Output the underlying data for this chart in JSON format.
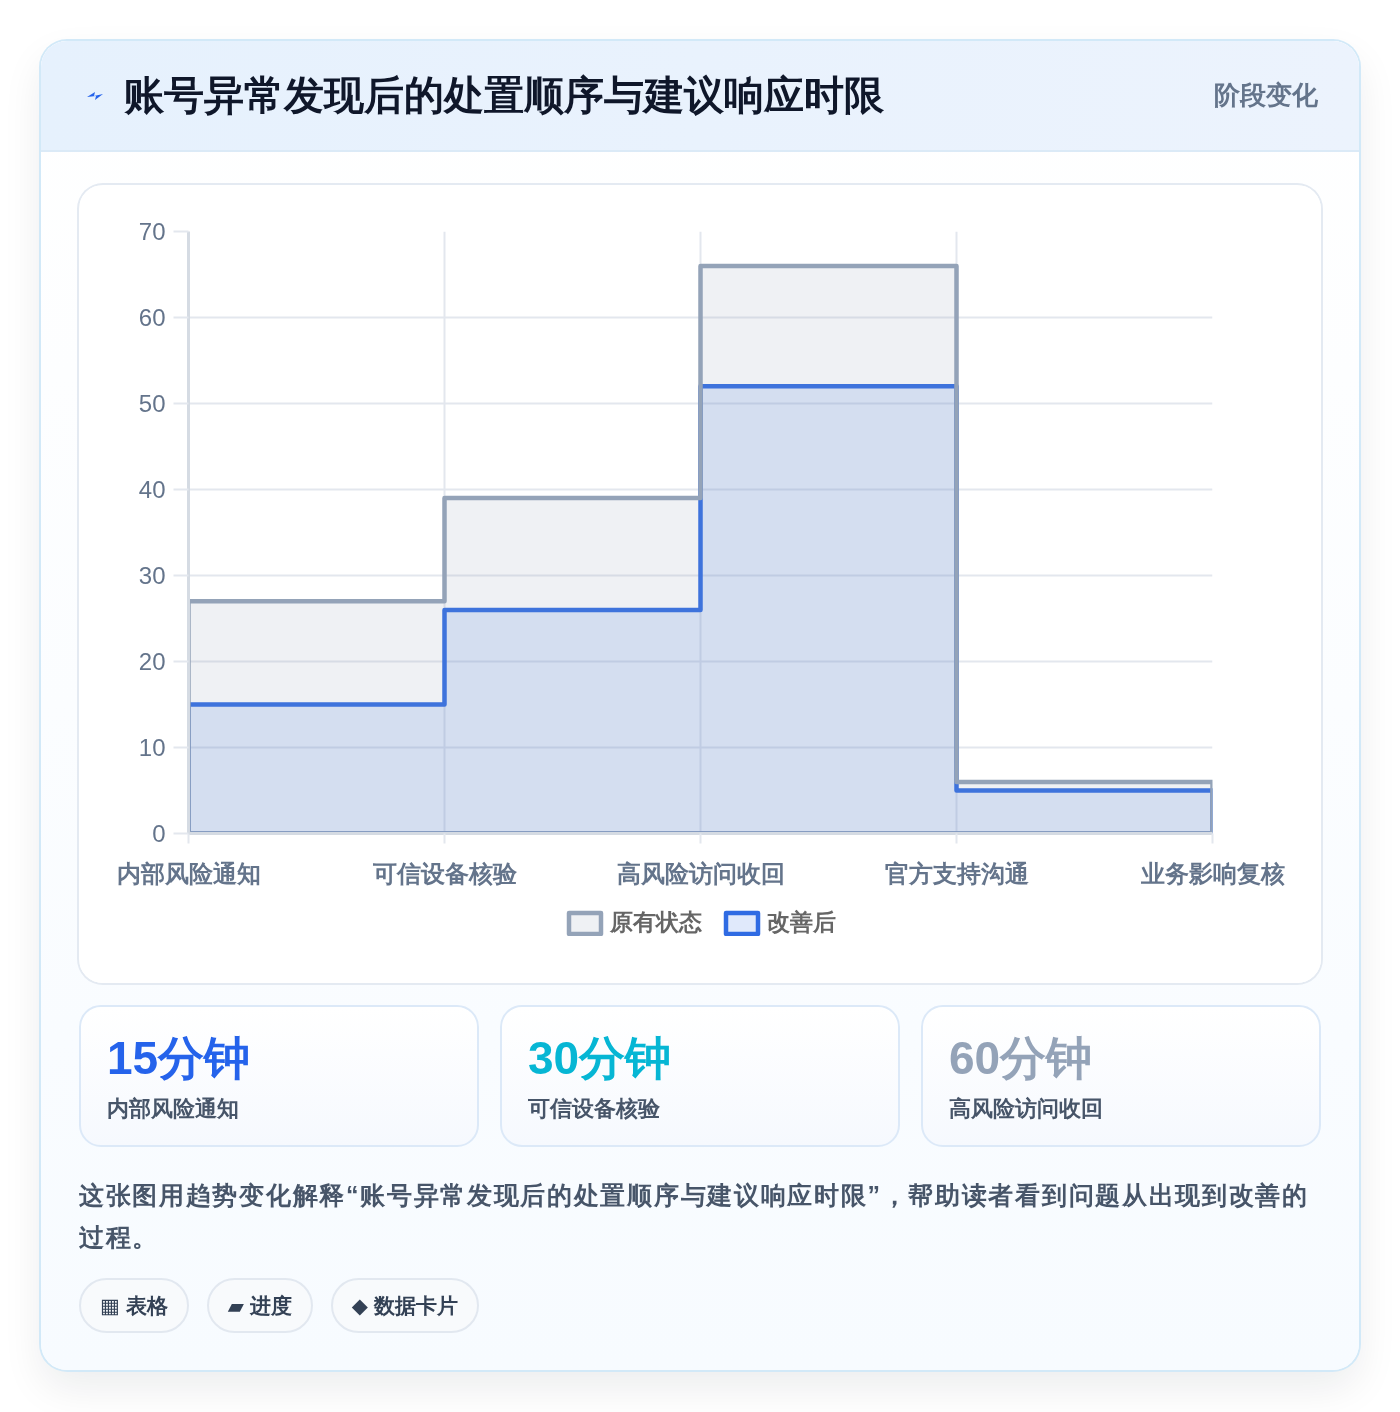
{
  "chart_data": [
    {
      "type": "step",
      "title": "账号异常发现后的处置顺序与建议响应时限",
      "subtitle": "阶段变化",
      "categories": [
        "内部风险通知",
        "可信设备核验",
        "高风险访问收回",
        "官方支持沟通",
        "业务影响复核"
      ],
      "series": [
        {
          "name": "原有状态",
          "type": "area",
          "color": "#94a3b8",
          "values": [
            27,
            39,
            66,
            6,
            5
          ]
        },
        {
          "name": "改善后",
          "type": "area",
          "color": "#2f6be3",
          "values": [
            15,
            26,
            52,
            5,
            5
          ]
        }
      ],
      "ylim": [
        0,
        70
      ],
      "yticks": [
        0,
        10,
        20,
        30,
        40,
        50,
        60,
        70
      ],
      "grid": true,
      "legend": "bottom",
      "annotations": [
        "这张图用趋势变化解释“账号异常发现后的处置顺序与建议响应时限”，帮助读者看到问题从出现到改善的过程。",
        "▦ 表格",
        "▰ 进度",
        "◆ 数据卡片"
      ]
    },
    {
      "type": "other",
      "annotations": [
        "15分钟",
        "内部风险通知",
        "30分钟",
        "可信设备核验",
        "60分钟",
        "高风险访问收回"
      ]
    }
  ]
}
